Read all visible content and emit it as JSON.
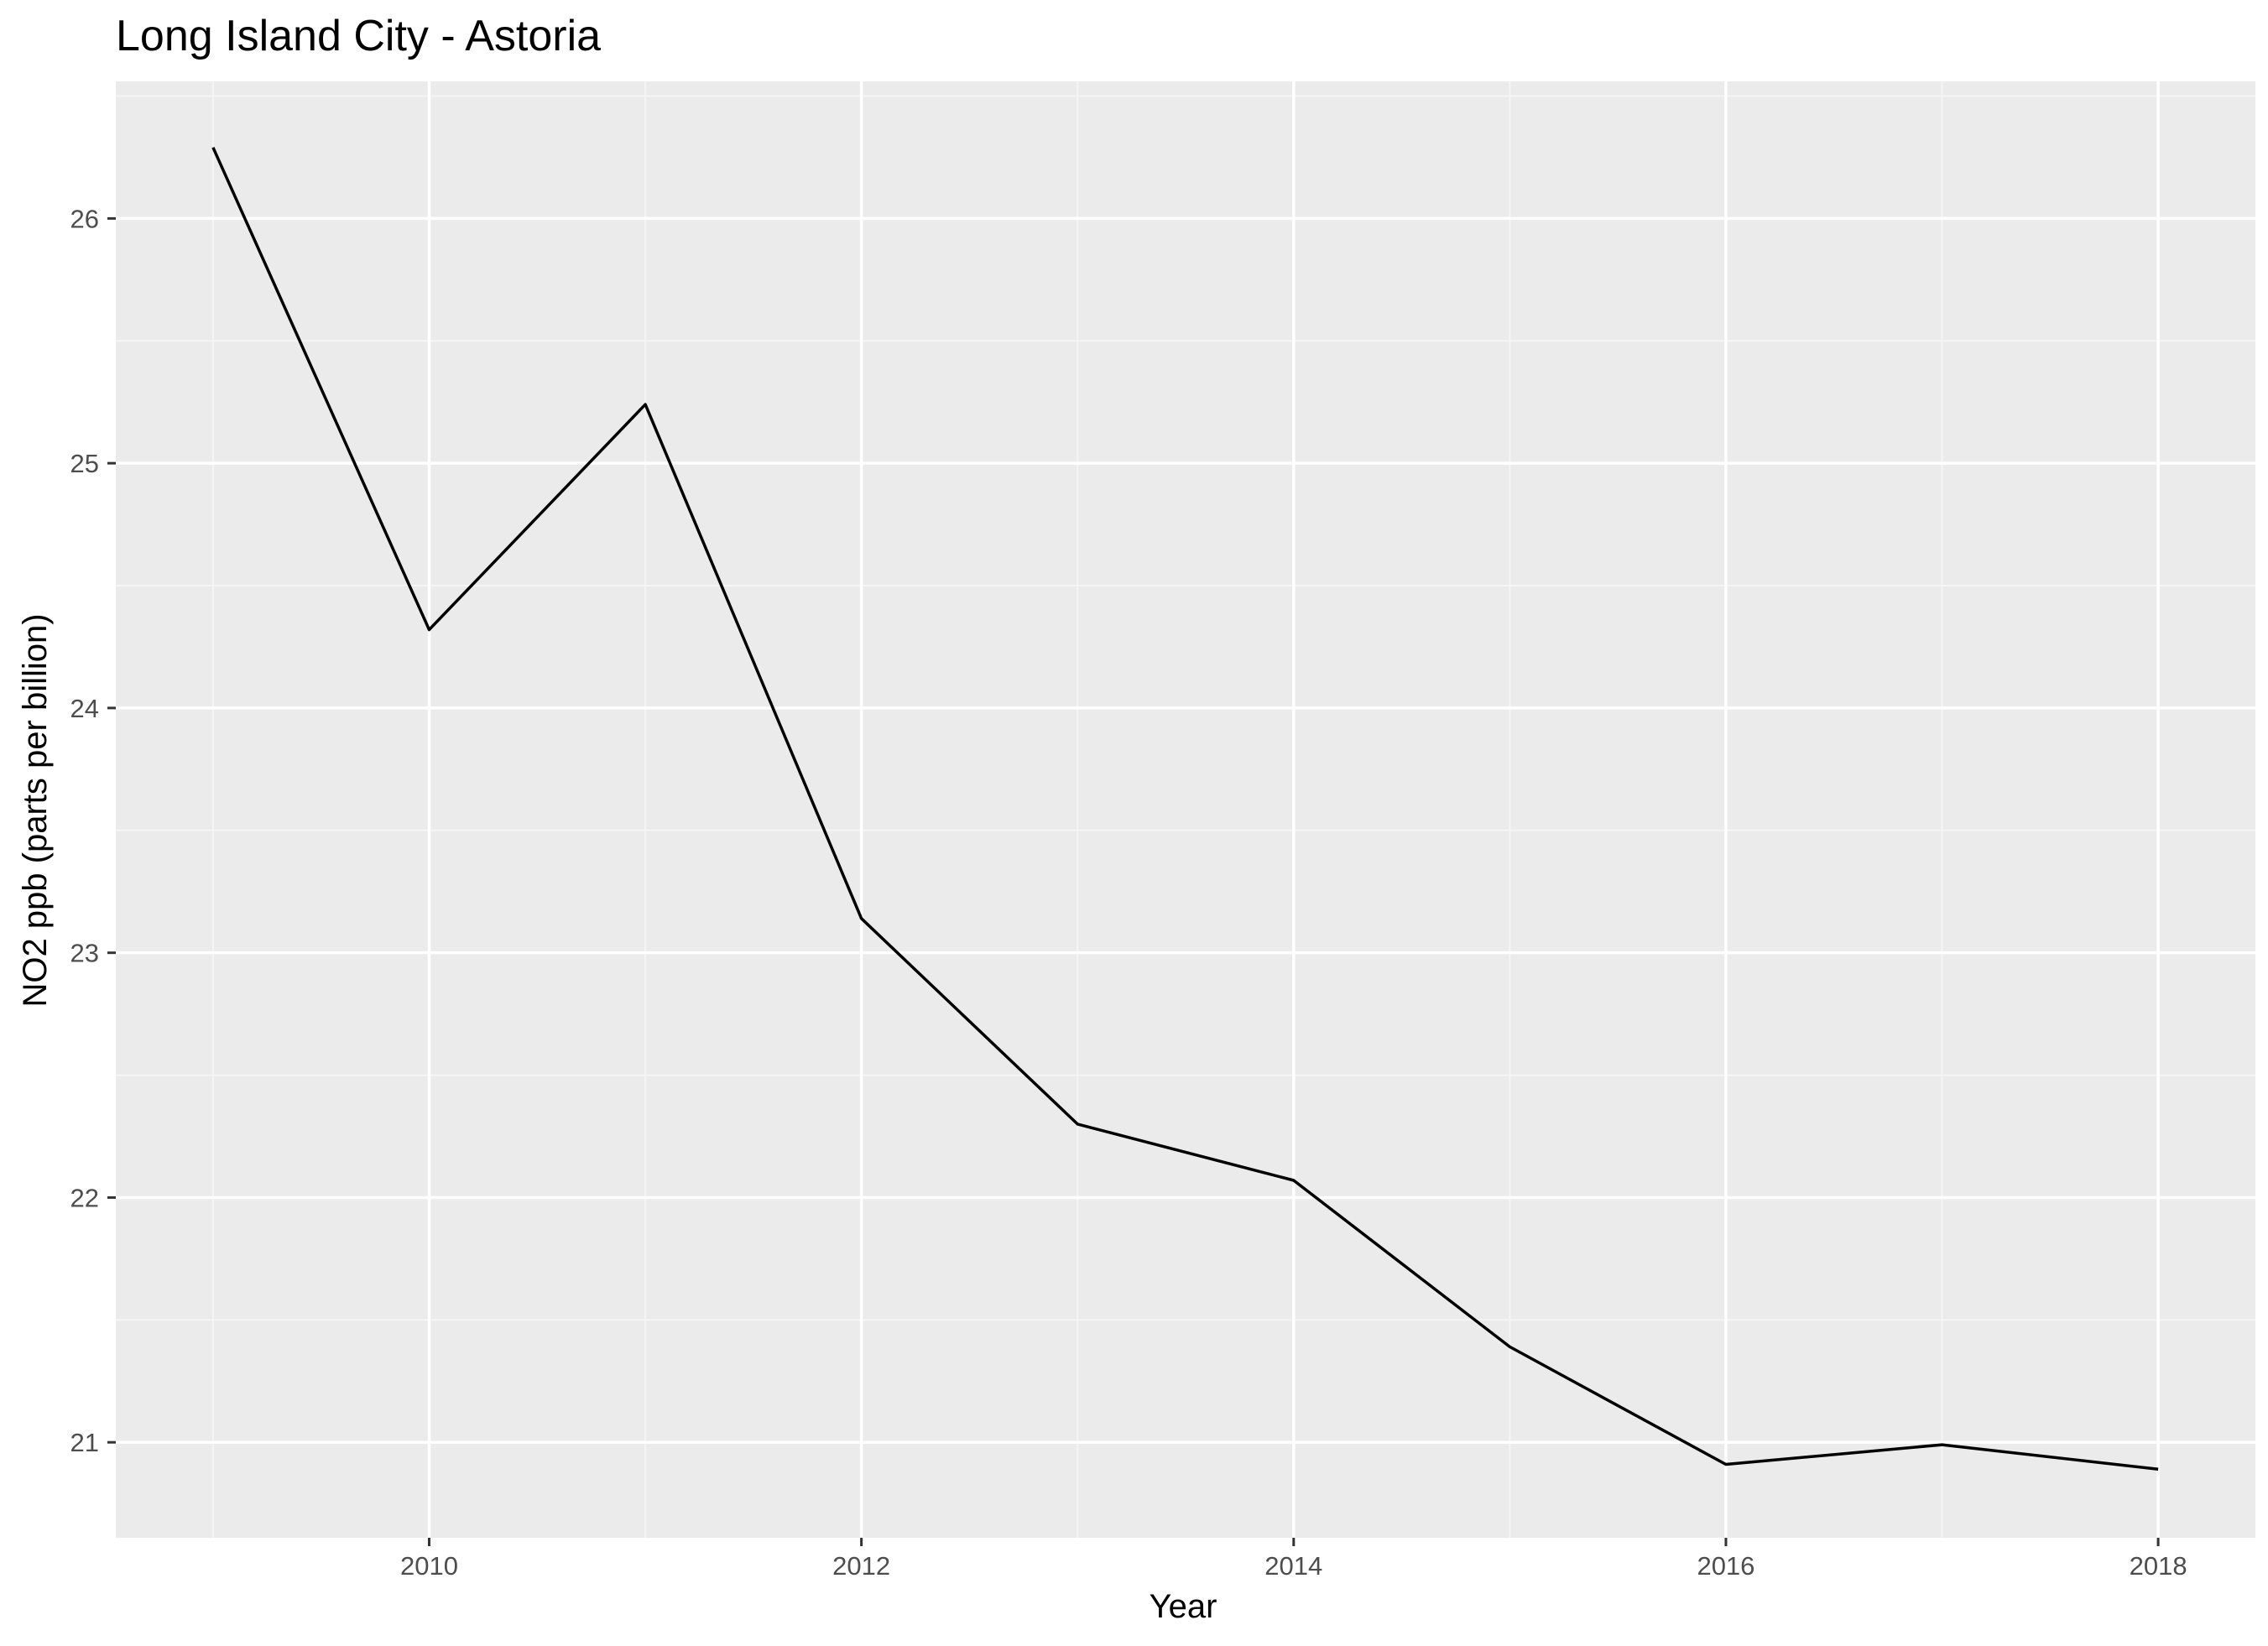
{
  "chart_data": {
    "type": "line",
    "title": "Long Island City - Astoria",
    "xlabel": "Year",
    "ylabel": "NO2 ppb (parts per billion)",
    "x": [
      2009,
      2010,
      2011,
      2012,
      2013,
      2014,
      2015,
      2016,
      2017,
      2018
    ],
    "series": [
      {
        "values": [
          26.29,
          24.32,
          25.24,
          23.14,
          22.3,
          22.07,
          21.39,
          20.91,
          20.99,
          20.89
        ]
      }
    ],
    "xlim": [
      2008.55,
      2018.45
    ],
    "ylim": [
      20.61,
      26.56
    ],
    "xticks": [
      2010,
      2012,
      2014,
      2016,
      2018
    ],
    "yticks": [
      21,
      22,
      23,
      24,
      25,
      26
    ],
    "grid": true,
    "legend": "none",
    "colors": {
      "panel_background": "#ebebeb",
      "grid_major": "#ffffff",
      "grid_minor": "#f5f5f5",
      "line": "#000000",
      "tick_label": "#4d4d4d"
    }
  }
}
